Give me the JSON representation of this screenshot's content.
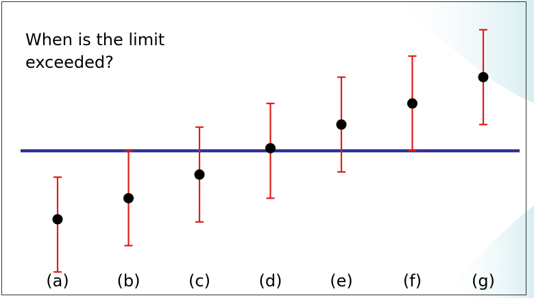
{
  "question": {
    "line1": "When is the limit",
    "line2": "exceeded?"
  },
  "colors": {
    "limit_line": "#2e2e9a",
    "error_bar": "#e01b1b",
    "point": "#000000",
    "frame": "#333333",
    "background_accent": "#d4ecf1"
  },
  "chart_data": {
    "type": "scatter",
    "categories": [
      "(a)",
      "(b)",
      "(c)",
      "(d)",
      "(e)",
      "(f)",
      "(g)"
    ],
    "values": [
      -2.6,
      -1.8,
      -0.9,
      0.1,
      1.0,
      1.8,
      2.8
    ],
    "error_low": [
      -4.6,
      -3.6,
      -2.7,
      -1.8,
      -0.8,
      0.0,
      1.0
    ],
    "error_high": [
      -1.0,
      0.0,
      0.9,
      1.8,
      2.8,
      3.6,
      4.6
    ],
    "limit": 0,
    "xlabel": "",
    "ylabel": "",
    "ylim": [
      -5.2,
      5.6
    ],
    "grid": false,
    "legend": "none"
  }
}
